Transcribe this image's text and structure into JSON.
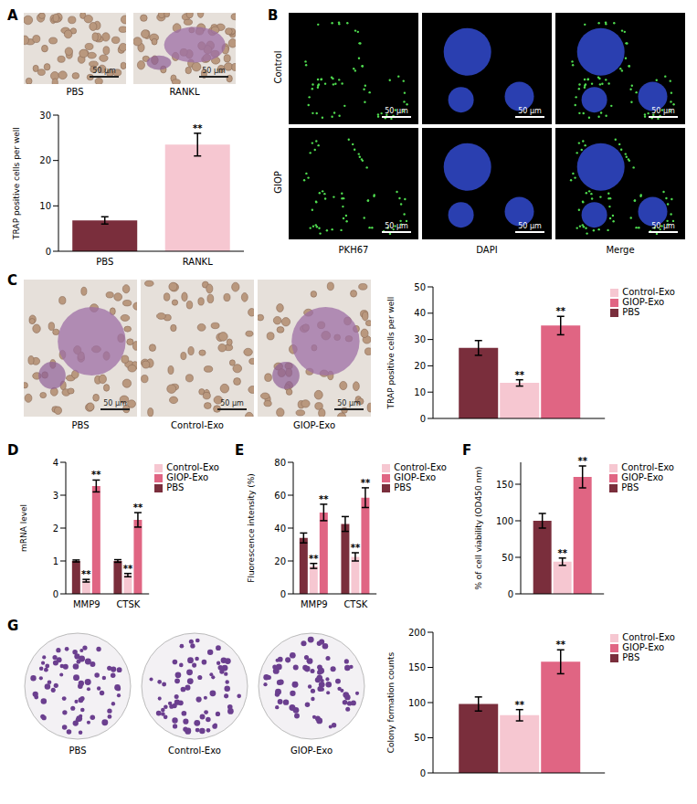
{
  "chart_data": [
    {
      "panel": "A",
      "type": "bar",
      "categories": [
        "PBS",
        "RANKL"
      ],
      "values": [
        6.8,
        23.5
      ],
      "errors": [
        0.8,
        2.5
      ],
      "significance": [
        null,
        "**"
      ],
      "colors": [
        "#7a2e3c",
        "#f6c7d1"
      ],
      "y_label": "TRAP positive cells per well",
      "ylim": [
        0,
        30
      ],
      "yticks": [
        0,
        10,
        20,
        30
      ],
      "grid": false
    },
    {
      "panel": "C",
      "type": "bar",
      "categories": [
        null
      ],
      "series": [
        {
          "name": "PBS",
          "color": "#7a2e3c",
          "values": [
            26.8
          ],
          "errors": [
            2.8
          ],
          "significance": [
            null
          ]
        },
        {
          "name": "Control-Exo",
          "color": "#f6c7d1",
          "values": [
            13.5
          ],
          "errors": [
            1.2
          ],
          "significance": [
            "**"
          ]
        },
        {
          "name": "GIOP-Exo",
          "color": "#e06583",
          "values": [
            35.3
          ],
          "errors": [
            3.5
          ],
          "significance": [
            "**"
          ]
        }
      ],
      "y_label": "TRAP positive cells per well",
      "ylim": [
        0,
        50
      ],
      "yticks": [
        0,
        10,
        20,
        30,
        40,
        50
      ],
      "legend": "right",
      "grid": false
    },
    {
      "panel": "D",
      "type": "bar",
      "categories": [
        "MMP9",
        "CTSK"
      ],
      "series": [
        {
          "name": "PBS",
          "color": "#7a2e3c",
          "values": [
            1.0,
            1.0
          ],
          "errors": [
            0.03,
            0.04
          ],
          "significance": [
            null,
            null
          ]
        },
        {
          "name": "Control-Exo",
          "color": "#f6c7d1",
          "values": [
            0.4,
            0.57
          ],
          "errors": [
            0.04,
            0.05
          ],
          "significance": [
            "**",
            "**"
          ]
        },
        {
          "name": "GIOP-Exo",
          "color": "#e06583",
          "values": [
            3.28,
            2.25
          ],
          "errors": [
            0.18,
            0.22
          ],
          "significance": [
            "**",
            "**"
          ]
        }
      ],
      "y_label": "mRNA level",
      "ylim": [
        0,
        4
      ],
      "yticks": [
        0,
        1,
        2,
        3,
        4
      ],
      "legend": "right",
      "grid": false
    },
    {
      "panel": "E",
      "type": "bar",
      "categories": [
        "MMP9",
        "CTSK"
      ],
      "series": [
        {
          "name": "PBS",
          "color": "#7a2e3c",
          "values": [
            34,
            42.5
          ],
          "errors": [
            3,
            4.5
          ],
          "significance": [
            null,
            null
          ]
        },
        {
          "name": "Control-Exo",
          "color": "#f6c7d1",
          "values": [
            17,
            22.5
          ],
          "errors": [
            1.5,
            2.5
          ],
          "significance": [
            "**",
            "**"
          ]
        },
        {
          "name": "GIOP-Exo",
          "color": "#e06583",
          "values": [
            49.5,
            58.5
          ],
          "errors": [
            5,
            6
          ],
          "significance": [
            "**",
            "**"
          ]
        }
      ],
      "y_label": "Fluorescence intensity (%)",
      "ylim": [
        0,
        80
      ],
      "yticks": [
        0,
        20,
        40,
        60,
        80
      ],
      "legend": "right",
      "grid": false
    },
    {
      "panel": "F",
      "type": "bar",
      "categories": [
        null
      ],
      "series": [
        {
          "name": "PBS",
          "color": "#7a2e3c",
          "values": [
            100
          ],
          "errors": [
            10
          ],
          "significance": [
            null
          ]
        },
        {
          "name": "Control-Exo",
          "color": "#f6c7d1",
          "values": [
            44
          ],
          "errors": [
            5
          ],
          "significance": [
            "**"
          ]
        },
        {
          "name": "GIOP-Exo",
          "color": "#e06583",
          "values": [
            160
          ],
          "errors": [
            15
          ],
          "significance": [
            "**"
          ]
        }
      ],
      "y_label": "% of cell viability (OD450 nm)",
      "ylim": [
        0,
        180
      ],
      "yticks": [
        0,
        50,
        100,
        150
      ],
      "legend": "right",
      "grid": false
    },
    {
      "panel": "G",
      "type": "bar",
      "categories": [
        null
      ],
      "series": [
        {
          "name": "PBS",
          "color": "#7a2e3c",
          "values": [
            98
          ],
          "errors": [
            10
          ],
          "significance": [
            null
          ]
        },
        {
          "name": "Control-Exo",
          "color": "#f6c7d1",
          "values": [
            82
          ],
          "errors": [
            8
          ],
          "significance": [
            "**"
          ]
        },
        {
          "name": "GIOP-Exo",
          "color": "#e06583",
          "values": [
            158
          ],
          "errors": [
            17
          ],
          "significance": [
            "**"
          ]
        }
      ],
      "y_label": "Colony formation counts",
      "ylim": [
        0,
        200
      ],
      "yticks": [
        0,
        50,
        100,
        150,
        200
      ],
      "legend": "right",
      "grid": false
    }
  ],
  "image_panels": [
    {
      "panel": "A",
      "images": [
        "PBS",
        "RANKL"
      ],
      "scale_bar": "50 μm"
    },
    {
      "panel": "B",
      "rows": [
        "Control",
        "GIOP"
      ],
      "columns": [
        "PKH67",
        "DAPI",
        "Merge"
      ],
      "scale_bar": "50 μm"
    },
    {
      "panel": "C",
      "images": [
        "PBS",
        "Control-Exo",
        "GIOP-Exo"
      ],
      "scale_bar": "50 μm"
    },
    {
      "panel": "G",
      "images": [
        "PBS",
        "Control-Exo",
        "GIOP-Exo"
      ]
    }
  ]
}
